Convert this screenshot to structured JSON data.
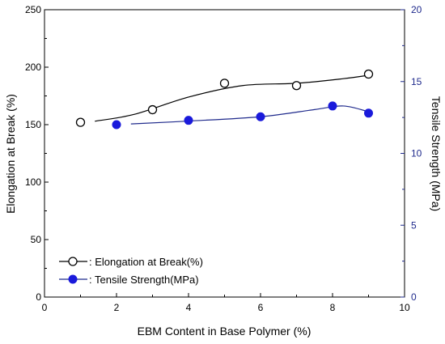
{
  "chart_data": {
    "type": "scatter",
    "x_axis": {
      "label": "EBM Content in Base Polymer (%)",
      "range": [
        0,
        10
      ],
      "ticks": [
        0,
        2,
        4,
        6,
        8,
        10
      ]
    },
    "y_axis_left": {
      "label": "Elongation at Break (%)",
      "range": [
        0,
        250
      ],
      "ticks": [
        0,
        50,
        100,
        150,
        200,
        250
      ]
    },
    "y_axis_right": {
      "label": "Tensile Strength (MPa)",
      "range": [
        0,
        20
      ],
      "ticks": [
        0,
        5,
        10,
        15,
        20
      ],
      "color": "#1f2a8c"
    },
    "series": [
      {
        "name": ": Elongation at Break(%)",
        "axis": "left",
        "marker": "open-circle",
        "color": "#000000",
        "x": [
          1,
          3,
          5,
          7,
          9
        ],
        "y": [
          152,
          163,
          186,
          184,
          194
        ],
        "trend": [
          [
            1.4,
            153
          ],
          [
            2.5,
            159
          ],
          [
            4,
            174
          ],
          [
            5.5,
            184
          ],
          [
            7,
            186
          ],
          [
            8.3,
            190
          ],
          [
            9,
            193
          ]
        ]
      },
      {
        "name": ": Tensile Strength(MPa)",
        "axis": "right",
        "marker": "filled-circle",
        "color": "#1a1adb",
        "line_color": "#1f2a8c",
        "x": [
          2,
          4,
          6,
          8,
          9
        ],
        "y": [
          12.0,
          12.3,
          12.55,
          13.3,
          12.8
        ],
        "trend": [
          [
            2.4,
            12.05
          ],
          [
            4,
            12.25
          ],
          [
            6,
            12.55
          ],
          [
            7.5,
            13.05
          ],
          [
            8.3,
            13.3
          ],
          [
            9,
            12.9
          ]
        ]
      }
    ],
    "legend": "bottom-left",
    "grid": false
  }
}
